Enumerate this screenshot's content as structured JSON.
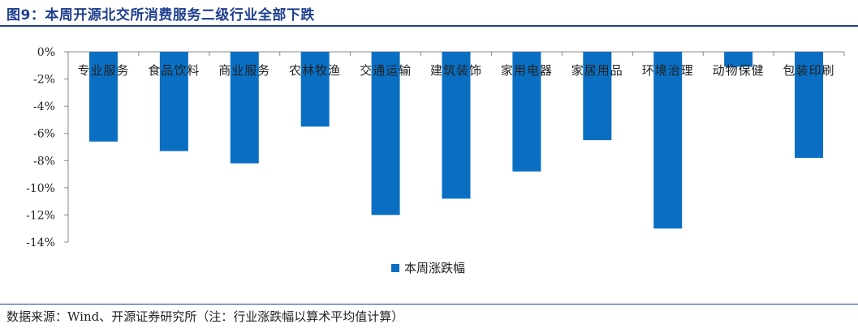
{
  "title": "图9：本周开源北交所消费服务二级行业全部下跌",
  "source": "数据来源：Wind、开源证券研究所（注：行业涨跌幅以算术平均值计算）",
  "colors": {
    "bar": "#0a6fc2",
    "accent": "#1f3f8f"
  },
  "chart_data": {
    "type": "bar",
    "title": "",
    "xlabel": "",
    "ylabel": "",
    "ylim": [
      -14,
      0
    ],
    "yticks": [
      0,
      -2,
      -4,
      -6,
      -8,
      -10,
      -12,
      -14
    ],
    "ytick_labels": [
      "0%",
      "-2%",
      "-4%",
      "-6%",
      "-8%",
      "-10%",
      "-12%",
      "-14%"
    ],
    "grid": false,
    "legend_position": "bottom",
    "categories": [
      "专业服务",
      "食品饮料",
      "商业服务",
      "农林牧渔",
      "交通运输",
      "建筑装饰",
      "家用电器",
      "家居用品",
      "环境治理",
      "动物保健",
      "包装印刷"
    ],
    "series": [
      {
        "name": "本周涨跌幅",
        "values": [
          -6.6,
          -7.3,
          -8.2,
          -5.5,
          -12.0,
          -10.8,
          -8.8,
          -6.5,
          -13.0,
          -1.1,
          -7.8
        ]
      }
    ]
  }
}
